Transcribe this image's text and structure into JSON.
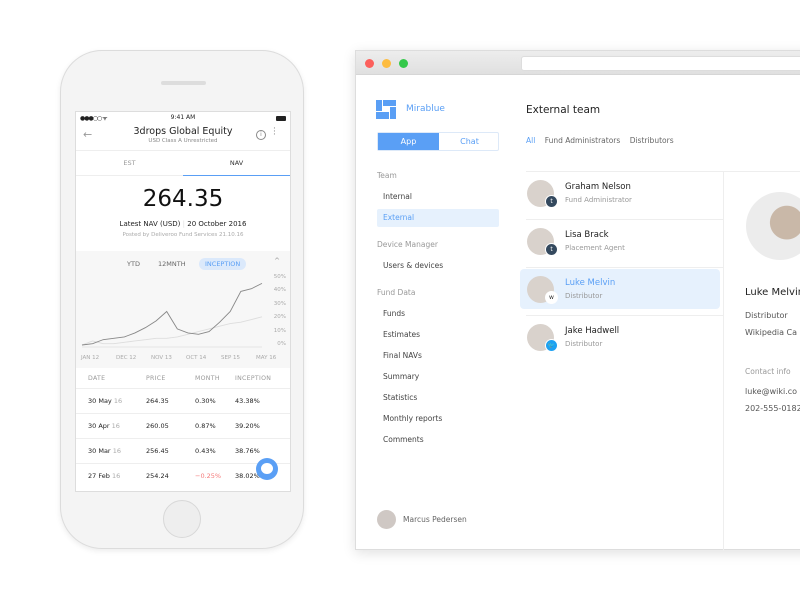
{
  "phone": {
    "status": {
      "carrier": "●●●○○ ᯤ",
      "time": "9:41 AM"
    },
    "title": "3drops Global Equity",
    "subtitle": "USD Class A Unrestricted",
    "tabs": [
      "EST",
      "NAV"
    ],
    "active_tab": "NAV",
    "nav_value": "264.35",
    "latest_label": "Latest NAV (USD)",
    "latest_date": "20 October 2016",
    "posted": "Posted by Deliveroo Fund Services 21.10.16",
    "ranges": [
      "YTD",
      "12MNTH",
      "INCEPTION"
    ],
    "active_range": "INCEPTION",
    "table": {
      "headers": [
        "DATE",
        "PRICE",
        "MONTH",
        "INCEPTION"
      ],
      "rows": [
        {
          "date": "30 May",
          "yr": "16",
          "price": "264.35",
          "month": "0.30%",
          "inception": "43.38%",
          "negative": false
        },
        {
          "date": "30 Apr",
          "yr": "16",
          "price": "260.05",
          "month": "0.87%",
          "inception": "39.20%",
          "negative": false
        },
        {
          "date": "30 Mar",
          "yr": "16",
          "price": "256.45",
          "month": "0.43%",
          "inception": "38.76%",
          "negative": false
        },
        {
          "date": "27 Feb",
          "yr": "16",
          "price": "254.24",
          "month": "−0.25%",
          "inception": "38.02%",
          "negative": true
        }
      ]
    }
  },
  "chart_data": {
    "type": "line",
    "x": [
      "JAN 12",
      "",
      "DEC 12",
      "",
      "",
      "NOV 13",
      "",
      "",
      "OCT 14",
      "",
      "",
      "",
      "SEP 15",
      "",
      "",
      "",
      "",
      "MAY 16"
    ],
    "xticks": [
      "JAN 12",
      "DEC 12",
      "NOV 13",
      "OCT 14",
      "SEP 15",
      "MAY 16"
    ],
    "yticks": [
      "50%",
      "40%",
      "30%",
      "20%",
      "10%",
      "0%"
    ],
    "ylim": [
      0,
      50
    ],
    "series": [
      {
        "color": "#888888",
        "values": [
          0,
          1,
          4,
          5,
          6,
          9,
          13,
          18,
          25,
          12,
          9,
          8,
          10,
          17,
          25,
          40,
          42,
          46
        ]
      },
      {
        "color": "#dddddd",
        "values": [
          0,
          3,
          1,
          1,
          2,
          3,
          4,
          5,
          5,
          6,
          8,
          10,
          12,
          14,
          16,
          17,
          19,
          21
        ]
      }
    ],
    "grid": false
  },
  "app": {
    "brand": "Mirablue",
    "segments": [
      "App",
      "Chat"
    ],
    "active_segment": "App",
    "sections": [
      {
        "title": "Team",
        "items": [
          "Internal",
          "External"
        ]
      },
      {
        "title": "Device Manager",
        "items": [
          "Users & devices"
        ]
      },
      {
        "title": "Fund Data",
        "items": [
          "Funds",
          "Estimates",
          "Final NAVs",
          "Summary",
          "Statistics",
          "Monthly reports",
          "Comments"
        ]
      }
    ],
    "active_item": "External",
    "user": "Marcus Pedersen",
    "title": "External team",
    "filters": [
      "All",
      "Fund Administrators",
      "Distributors"
    ],
    "active_filter": "All",
    "people": [
      {
        "name": "Graham Nelson",
        "role": "Fund Administrator",
        "badge": "t",
        "badge_color": "#34495e"
      },
      {
        "name": "Lisa Brack",
        "role": "Placement Agent",
        "badge": "t",
        "badge_color": "#34495e"
      },
      {
        "name": "Luke Melvin",
        "role": "Distributor",
        "badge": "w",
        "badge_color": "#ffffff"
      },
      {
        "name": "Jake Hadwell",
        "role": "Distributor",
        "badge": "🐦",
        "badge_color": "#1da1f2"
      }
    ],
    "detail": {
      "name": "Luke Melvin",
      "role": "Distributor",
      "company": "Wikipedia Ca",
      "contact_label": "Contact info",
      "email": "luke@wiki.co",
      "phone": "202-555-0182"
    }
  },
  "colors": {
    "accent": "#5a9ff5",
    "negative": "#f57b7b"
  }
}
